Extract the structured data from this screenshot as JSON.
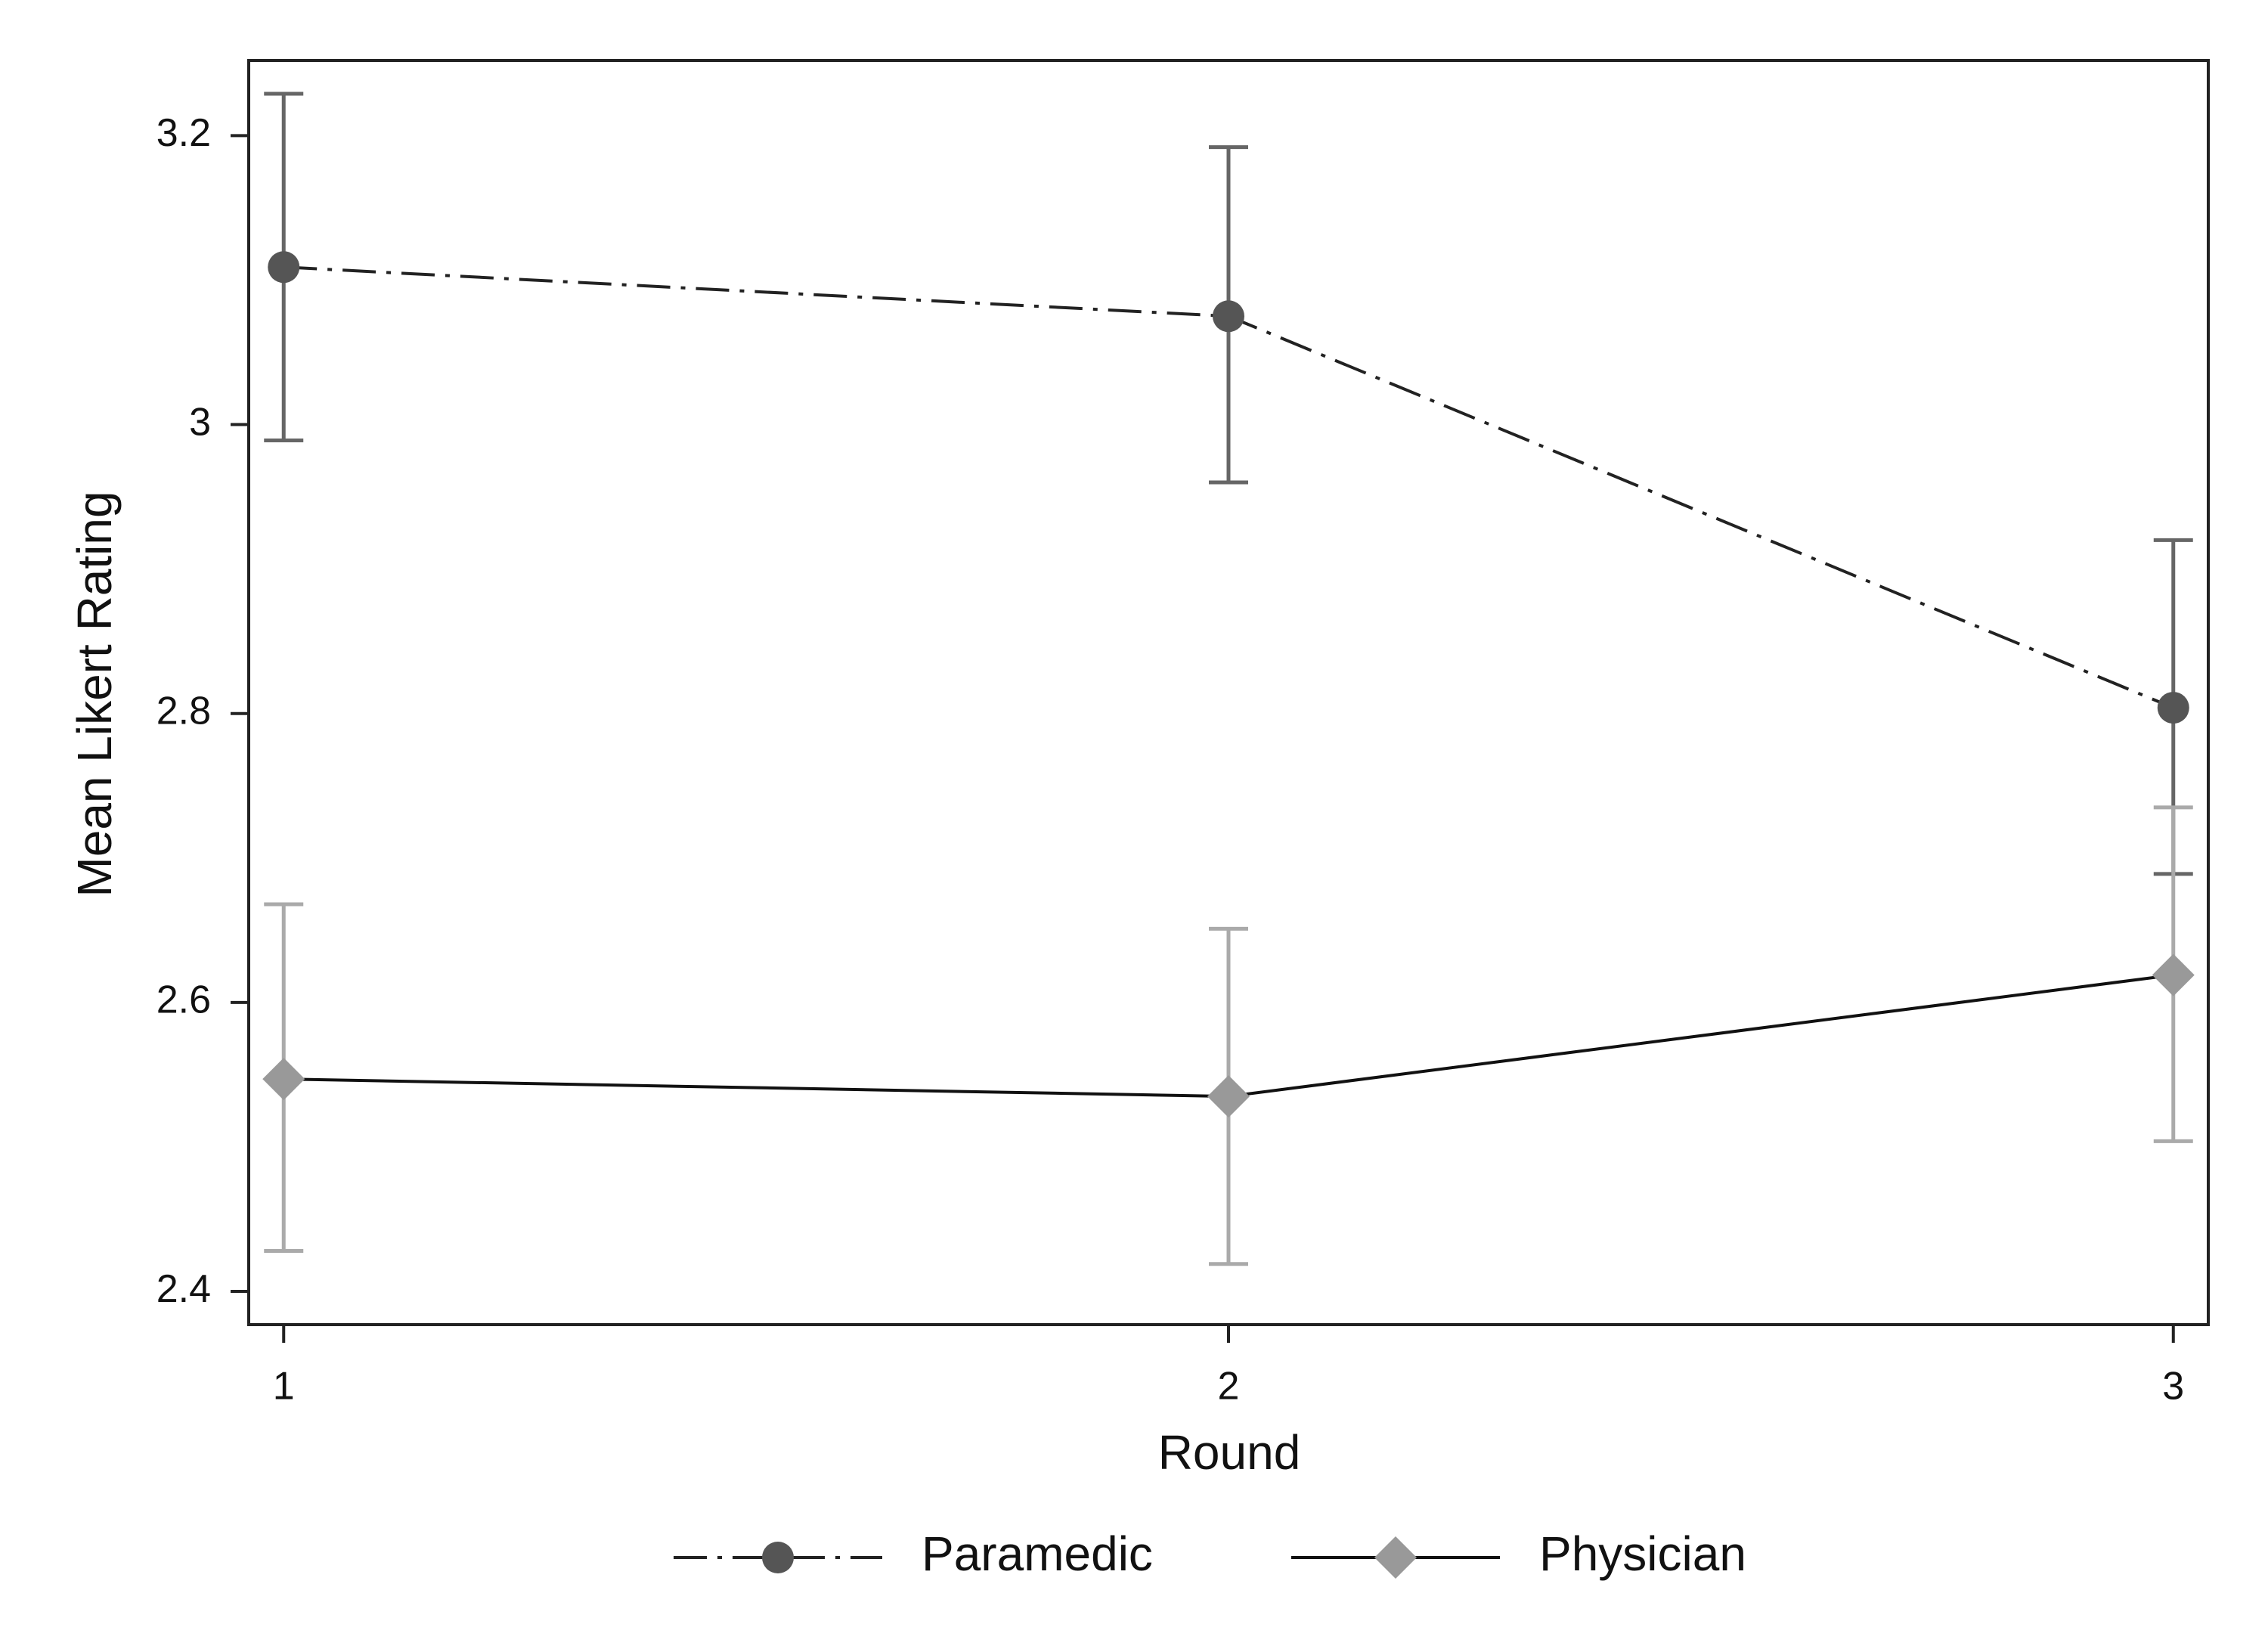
{
  "chart_data": {
    "type": "line",
    "x_label": "Round",
    "y_label": "Mean Likert Rating",
    "x": [
      1,
      2,
      3
    ],
    "xlim": [
      0.963,
      3.037
    ],
    "xticks": [
      1,
      2,
      3
    ],
    "ylim": [
      2.377,
      3.252
    ],
    "yticks": [
      2.4,
      2.6,
      2.8,
      3,
      3.2
    ],
    "grid": false,
    "legend": "bottom",
    "series": [
      {
        "name": "Paramedic",
        "color": "#555555",
        "line_color": "#222222",
        "error_color": "#666666",
        "line_style": "dash-dot",
        "marker": "circle",
        "values": [
          3.109,
          3.075,
          2.804
        ],
        "ci_low": [
          2.989,
          2.96,
          2.689
        ],
        "ci_high": [
          3.229,
          3.192,
          2.92
        ]
      },
      {
        "name": "Physician",
        "color": "#999999",
        "line_color": "#111111",
        "error_color": "#aaaaaa",
        "line_style": "solid",
        "marker": "diamond",
        "values": [
          2.547,
          2.535,
          2.619
        ],
        "ci_low": [
          2.428,
          2.419,
          2.504
        ],
        "ci_high": [
          2.668,
          2.651,
          2.735
        ]
      }
    ]
  }
}
